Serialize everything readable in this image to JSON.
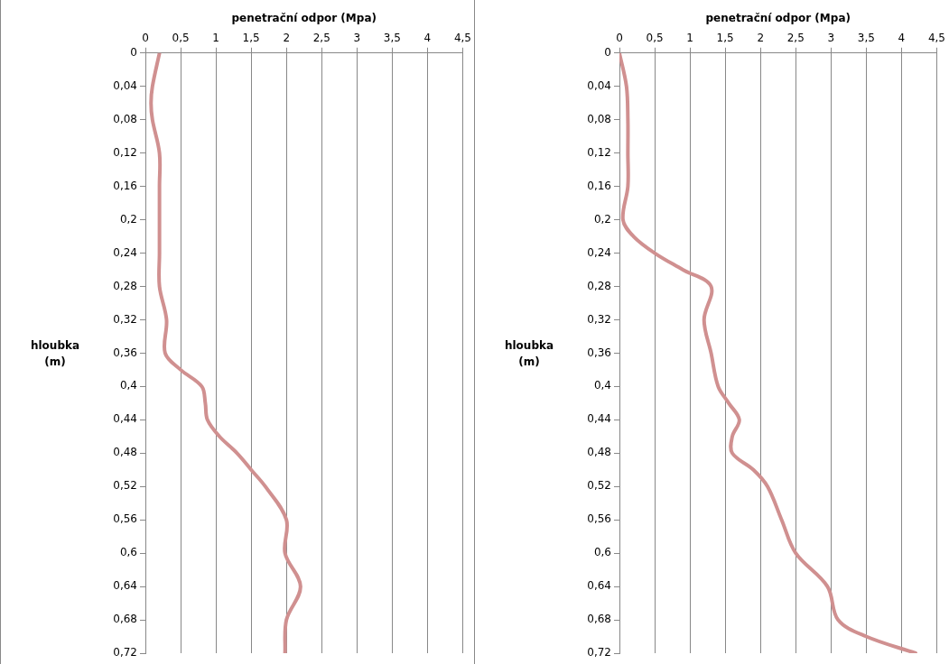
{
  "chart_data": [
    {
      "type": "line",
      "xlabel": "penetrační odpor (Mpa)",
      "ylabel": "hloubka (m)",
      "xlim": [
        0,
        4.5
      ],
      "xticks": [
        0,
        {
          "value": 0.5,
          "label": "0,5"
        },
        1,
        {
          "value": 1.5,
          "label": "1,5"
        },
        2,
        {
          "value": 2.5,
          "label": "2,5"
        },
        3,
        {
          "value": 3.5,
          "label": "3,5"
        },
        4,
        {
          "value": 4.5,
          "label": "4,5"
        }
      ],
      "ylim": [
        0.72,
        0
      ],
      "yticks": [
        0,
        {
          "value": 0.04,
          "label": "0,04"
        },
        {
          "value": 0.08,
          "label": "0,08"
        },
        {
          "value": 0.12,
          "label": "0,12"
        },
        {
          "value": 0.16,
          "label": "0,16"
        },
        {
          "value": 0.2,
          "label": "0,2"
        },
        {
          "value": 0.24,
          "label": "0,24"
        },
        {
          "value": 0.28,
          "label": "0,28"
        },
        {
          "value": 0.32,
          "label": "0,32"
        },
        {
          "value": 0.36,
          "label": "0,36"
        },
        {
          "value": 0.4,
          "label": "0,4"
        },
        {
          "value": 0.44,
          "label": "0,44"
        },
        {
          "value": 0.48,
          "label": "0,48"
        },
        {
          "value": 0.52,
          "label": "0,52"
        },
        {
          "value": 0.56,
          "label": "0,56"
        },
        {
          "value": 0.6,
          "label": "0,6"
        },
        {
          "value": 0.64,
          "label": "0,64"
        },
        {
          "value": 0.68,
          "label": "0,68"
        },
        {
          "value": 0.72,
          "label": "0,72"
        }
      ],
      "grid": "x",
      "legend": false,
      "marker": "none",
      "series": [
        {
          "color": "#d09090",
          "x": [
            0.2,
            0.1,
            0.08,
            0.1,
            0.2,
            0.2,
            0.2,
            0.2,
            0.2,
            0.3,
            0.28,
            0.5,
            0.8,
            0.85,
            0.88,
            1.05,
            1.3,
            1.5,
            1.7,
            2.0,
            1.98,
            2.2,
            2.0,
            1.98
          ],
          "values": [
            0,
            0.04,
            0.06,
            0.08,
            0.12,
            0.16,
            0.2,
            0.24,
            0.28,
            0.32,
            0.36,
            0.38,
            0.4,
            0.42,
            0.44,
            0.46,
            0.48,
            0.5,
            0.52,
            0.56,
            0.6,
            0.64,
            0.68,
            0.72
          ]
        }
      ]
    },
    {
      "type": "line",
      "xlabel": "penetrační odpor (Mpa)",
      "ylabel": "hloubka (m)",
      "xlim": [
        0,
        4.5
      ],
      "xticks": [
        0,
        {
          "value": 0.5,
          "label": "0,5"
        },
        1,
        {
          "value": 1.5,
          "label": "1,5"
        },
        2,
        {
          "value": 2.5,
          "label": "2,5"
        },
        3,
        {
          "value": 3.5,
          "label": "3,5"
        },
        4,
        {
          "value": 4.5,
          "label": "4,5"
        }
      ],
      "ylim": [
        0.72,
        0
      ],
      "yticks": [
        0,
        {
          "value": 0.04,
          "label": "0,04"
        },
        {
          "value": 0.08,
          "label": "0,08"
        },
        {
          "value": 0.12,
          "label": "0,12"
        },
        {
          "value": 0.16,
          "label": "0,16"
        },
        {
          "value": 0.2,
          "label": "0,2"
        },
        {
          "value": 0.24,
          "label": "0,24"
        },
        {
          "value": 0.28,
          "label": "0,28"
        },
        {
          "value": 0.32,
          "label": "0,32"
        },
        {
          "value": 0.36,
          "label": "0,36"
        },
        {
          "value": 0.4,
          "label": "0,4"
        },
        {
          "value": 0.44,
          "label": "0,44"
        },
        {
          "value": 0.48,
          "label": "0,48"
        },
        {
          "value": 0.52,
          "label": "0,52"
        },
        {
          "value": 0.56,
          "label": "0,56"
        },
        {
          "value": 0.6,
          "label": "0,6"
        },
        {
          "value": 0.64,
          "label": "0,64"
        },
        {
          "value": 0.68,
          "label": "0,68"
        },
        {
          "value": 0.72,
          "label": "0,72"
        }
      ],
      "grid": "x",
      "legend": false,
      "marker": "none",
      "series": [
        {
          "color": "#d09090",
          "x": [
            0,
            0.1,
            0.12,
            0.12,
            0.12,
            0.05,
            0.2,
            0.5,
            0.9,
            1.3,
            1.2,
            1.3,
            1.4,
            1.55,
            1.7,
            1.6,
            1.6,
            1.9,
            2.1,
            2.3,
            2.5,
            2.95,
            3.1,
            3.5,
            4.2
          ],
          "values": [
            0,
            0.04,
            0.08,
            0.12,
            0.16,
            0.2,
            0.22,
            0.24,
            0.26,
            0.28,
            0.32,
            0.36,
            0.4,
            0.42,
            0.44,
            0.46,
            0.48,
            0.5,
            0.52,
            0.56,
            0.6,
            0.64,
            0.68,
            0.7,
            0.72
          ]
        }
      ]
    }
  ]
}
